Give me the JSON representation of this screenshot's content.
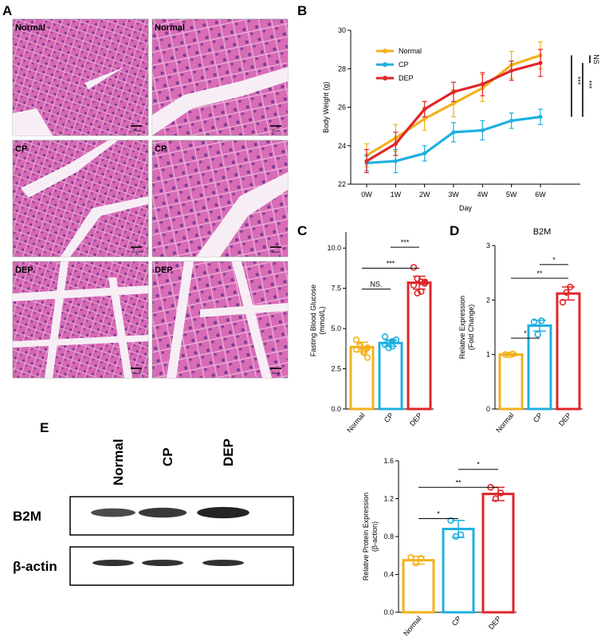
{
  "colors": {
    "normal": "#F2B11C",
    "cp": "#1FB0E0",
    "dep": "#E0262A",
    "histo_bg": "#E7A8D6",
    "histo_cell": "#C1428F",
    "histo_dark": "#7E3A93"
  },
  "panels": {
    "A": "A",
    "B": "B",
    "C": "C",
    "D": "D",
    "E": "E"
  },
  "histology": {
    "tiles": [
      {
        "label": "Normal",
        "scale": "100μm",
        "group": "normal"
      },
      {
        "label": "Normal",
        "scale": "50μm",
        "group": "normal"
      },
      {
        "label": "CP",
        "scale": "100μm",
        "group": "cp"
      },
      {
        "label": "CP",
        "scale": "50μm",
        "group": "cp"
      },
      {
        "label": "DEP",
        "scale": "100μm",
        "group": "dep"
      },
      {
        "label": "DEP",
        "scale": "50μm",
        "group": "dep"
      }
    ]
  },
  "western_blot": {
    "lanes": [
      "Normal",
      "CP",
      "DEP"
    ],
    "rows": [
      {
        "label": "B2M",
        "intensity": [
          0.55,
          0.88,
          1.25
        ]
      },
      {
        "label": "β-actin",
        "intensity": [
          1,
          1,
          1
        ]
      }
    ]
  },
  "chart_data": [
    {
      "id": "B",
      "type": "line",
      "x": [
        "0W",
        "1W",
        "2W",
        "3W",
        "4W",
        "5W",
        "6W"
      ],
      "xlabel": "Day",
      "ylabel": "Body Weight (g)",
      "ylim": [
        22,
        30
      ],
      "yticks": [
        "22",
        "24",
        "26",
        "28",
        "30"
      ],
      "legend_position": "top-left",
      "series": [
        {
          "name": "Normal",
          "color": "#F2B11C",
          "values": [
            23.5,
            24.4,
            25.4,
            26.2,
            27.0,
            28.2,
            28.7
          ],
          "errors": [
            0.6,
            0.7,
            0.6,
            0.7,
            0.7,
            0.7,
            0.7
          ]
        },
        {
          "name": "CP",
          "color": "#1FB0E0",
          "values": [
            23.1,
            23.2,
            23.6,
            24.7,
            24.8,
            25.3,
            25.5
          ],
          "errors": [
            0.4,
            0.6,
            0.4,
            0.5,
            0.5,
            0.4,
            0.4
          ]
        },
        {
          "name": "DEP",
          "color": "#E0262A",
          "values": [
            23.2,
            24.1,
            25.9,
            26.8,
            27.2,
            27.9,
            28.3
          ],
          "errors": [
            0.6,
            0.6,
            0.4,
            0.5,
            0.6,
            0.5,
            0.7
          ]
        }
      ],
      "significance": [
        "NS",
        "***",
        "***"
      ]
    },
    {
      "id": "C",
      "type": "bar",
      "categories": [
        "Normal",
        "CP",
        "DEP"
      ],
      "values": [
        3.85,
        4.1,
        7.85
      ],
      "errors": [
        0.3,
        0.2,
        0.4
      ],
      "points": [
        [
          4.3,
          3.9,
          3.5,
          3.2,
          3.7,
          4.0,
          3.6,
          3.8
        ],
        [
          4.5,
          4.1,
          3.9,
          4.3,
          4.0,
          3.8,
          4.2
        ],
        [
          8.8,
          8.1,
          7.3,
          7.8,
          7.7,
          7.2,
          7.9,
          7.9
        ]
      ],
      "ylabel": "Fasting Blood Glucose\n(mmol/L)",
      "ylim": [
        0,
        11
      ],
      "yticks": [
        "0.0",
        "2.5",
        "5.0",
        "7.5",
        "10.0"
      ],
      "significance": [
        "NS.",
        "***",
        "***"
      ]
    },
    {
      "id": "D",
      "type": "bar",
      "title": "B2M",
      "categories": [
        "Normal",
        "CP",
        "DEP"
      ],
      "values": [
        1.0,
        1.53,
        2.12
      ],
      "errors": [
        0.02,
        0.1,
        0.12
      ],
      "points": [
        [
          1.0,
          0.99,
          1.01
        ],
        [
          1.6,
          1.37,
          1.62
        ],
        [
          1.96,
          2.14,
          2.24
        ]
      ],
      "ylabel": "Relative Expression\n(Fold Change)",
      "ylim": [
        0,
        3
      ],
      "yticks": [
        "0",
        "1",
        "2",
        "3"
      ],
      "significance": [
        "*",
        "**",
        "*"
      ]
    },
    {
      "id": "E",
      "type": "bar",
      "categories": [
        "Normal",
        "CP",
        "DEP"
      ],
      "values": [
        0.55,
        0.88,
        1.25
      ],
      "errors": [
        0.04,
        0.09,
        0.07
      ],
      "points": [
        [
          0.58,
          0.52,
          0.57
        ],
        [
          0.97,
          0.8,
          0.82
        ],
        [
          1.32,
          1.2,
          1.26
        ]
      ],
      "ylabel": "Relative Protein Expression\n(β-action)",
      "ylim": [
        0,
        1.6
      ],
      "yticks": [
        "0.0",
        "0.4",
        "0.8",
        "1.2",
        "1.6"
      ],
      "significance": [
        "*",
        "**",
        "*"
      ]
    }
  ]
}
